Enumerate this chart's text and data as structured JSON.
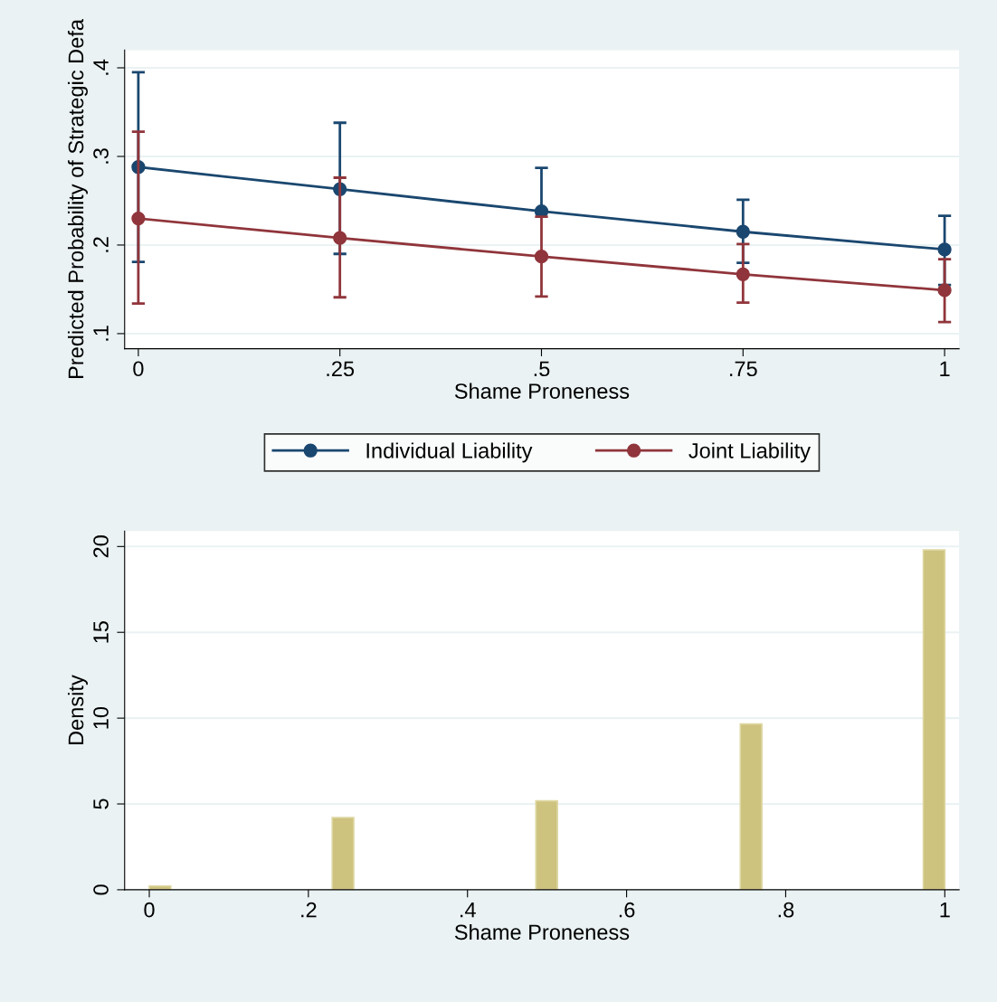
{
  "chart_data": [
    {
      "type": "line",
      "xlabel": "Shame Proneness",
      "ylabel": "Predicted Probability of Strategic Defa",
      "x": [
        0,
        0.25,
        0.5,
        0.75,
        1
      ],
      "xlim": [
        -0.017,
        1.018
      ],
      "ylim": [
        0.083,
        0.42
      ],
      "xticks": [
        0,
        {
          "value": 0.25,
          "label": ".25"
        },
        {
          "value": 0.5,
          "label": ".5"
        },
        {
          "value": 0.75,
          "label": ".75"
        },
        1
      ],
      "yticks": [
        {
          "value": 0.1,
          "label": ".1"
        },
        {
          "value": 0.2,
          "label": ".2"
        },
        {
          "value": 0.3,
          "label": ".3"
        },
        {
          "value": 0.4,
          "label": ".4"
        }
      ],
      "grid": "y",
      "legend": "bottom",
      "marker": "circle",
      "line_style": "solid",
      "series": [
        {
          "name": "Individual Liability",
          "color": "#1a476f",
          "values": [
            0.288,
            0.263,
            0.238,
            0.215,
            0.195
          ],
          "errors": [
            [
              0.181,
              0.395
            ],
            [
              0.19,
              0.338
            ],
            [
              0.238,
              0.287
            ],
            [
              0.18,
              0.251
            ],
            [
              0.155,
              0.233
            ]
          ]
        },
        {
          "name": "Joint Liability",
          "color": "#90353b",
          "values": [
            0.23,
            0.208,
            0.187,
            0.167,
            0.149
          ],
          "errors": [
            [
              0.134,
              0.328
            ],
            [
              0.141,
              0.276
            ],
            [
              0.142,
              0.232
            ],
            [
              0.135,
              0.201
            ],
            [
              0.113,
              0.184
            ]
          ]
        }
      ]
    },
    {
      "type": "histogram",
      "xlabel": "Shame Proneness",
      "ylabel": "Density",
      "color": "#cdc27e",
      "bins": [
        0,
        0.027,
        0.23,
        0.257,
        0.486,
        0.513,
        0.743,
        0.77,
        0.973,
        1.0
      ],
      "values": [
        0.22,
        0,
        4.2,
        0,
        5.18,
        0,
        9.66,
        0,
        19.8
      ],
      "xlim": [
        -0.031,
        1.018
      ],
      "ylim": [
        0,
        20.9
      ],
      "xticks": [
        0,
        {
          "value": 0.2,
          "label": ".2"
        },
        {
          "value": 0.4,
          "label": ".4"
        },
        {
          "value": 0.6,
          "label": ".6"
        },
        {
          "value": 0.8,
          "label": ".8"
        },
        1
      ],
      "yticks": [
        0,
        5,
        10,
        15,
        20
      ],
      "grid": "y"
    }
  ]
}
